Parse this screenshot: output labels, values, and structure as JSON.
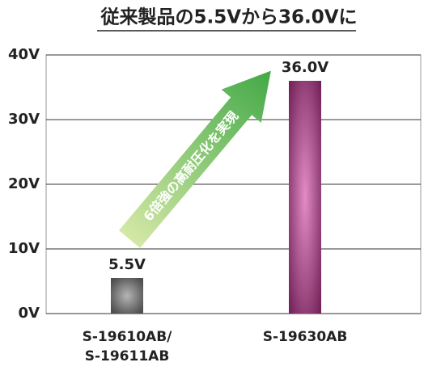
{
  "chart_data": {
    "type": "bar",
    "title": "従来製品の5.5Vから36.0Vに",
    "categories": [
      "S-19610AB/\nS-19611AB",
      "S-19630AB"
    ],
    "values": [
      5.5,
      36.0
    ],
    "value_labels": [
      "5.5V",
      "36.0V"
    ],
    "colors": [
      "#505050",
      "#6e1f54"
    ],
    "ylim": [
      0,
      40
    ],
    "yticks": [
      {
        "value": 0,
        "label": "0V"
      },
      {
        "value": 10,
        "label": "10V"
      },
      {
        "value": 20,
        "label": "20V"
      },
      {
        "value": 30,
        "label": "30V"
      },
      {
        "value": 40,
        "label": "40V"
      }
    ],
    "grid": true,
    "annotation": "6倍強の高耐圧化を実現"
  }
}
